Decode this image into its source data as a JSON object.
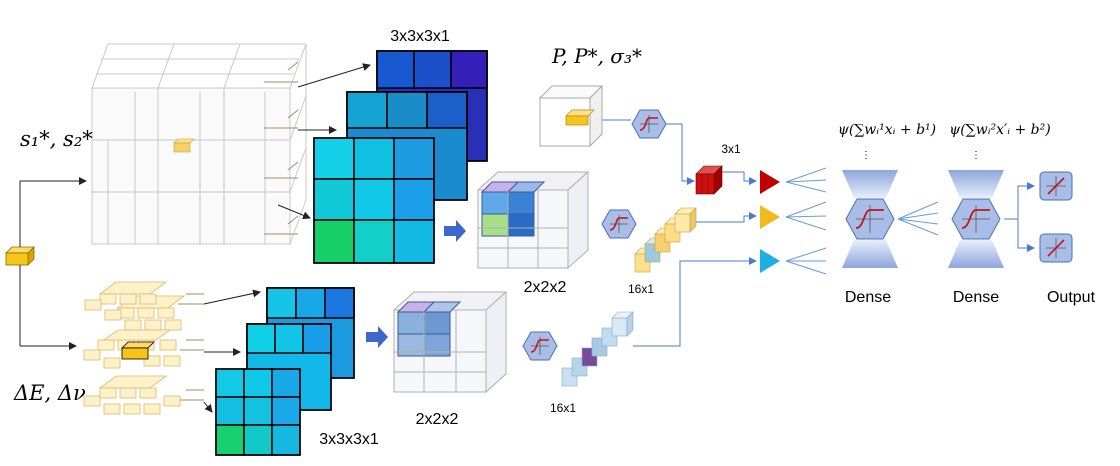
{
  "inputs": {
    "strain_label": "s₁*, s₂*",
    "elastic_label": "ΔE, Δν",
    "pressure_label": "P, P*, σ₃*"
  },
  "filters": {
    "top_label": "3x3x3x1",
    "bottom_label": "3x3x3x1"
  },
  "pooled": {
    "top_label": "2x2x2",
    "bottom_label": "2x2x2"
  },
  "vectors": {
    "red_label": "3x1",
    "yellow_label": "16x1",
    "blue_label": "16x1"
  },
  "dense": {
    "formula_1": "ψ(∑wᵢ¹xᵢ + b¹)",
    "formula_2": "ψ(∑wᵢ²x′ᵢ + b²)",
    "dense_1_label": "Dense",
    "dense_2_label": "Dense",
    "output_label": "Output"
  },
  "colors": {
    "input_cube": "#f5c518",
    "dense_blue": "#a9bde6",
    "red_arrow": "#c00000",
    "yellow_arrow": "#f2bb1d",
    "cyan_arrow": "#1ab0e0",
    "connector": "#4a7bd0"
  }
}
